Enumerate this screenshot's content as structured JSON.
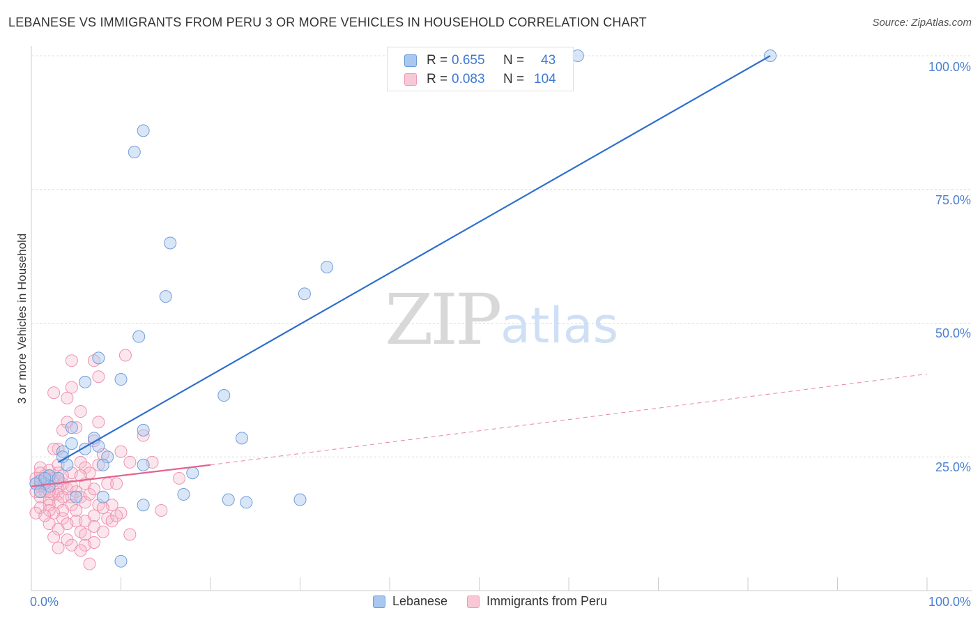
{
  "chart_data": {
    "type": "scatter",
    "title": "LEBANESE VS IMMIGRANTS FROM PERU 3 OR MORE VEHICLES IN HOUSEHOLD CORRELATION CHART",
    "source": "Source: ZipAtlas.com",
    "xlabel": "",
    "ylabel": "3 or more Vehicles in Household",
    "xlim": [
      0,
      100
    ],
    "ylim": [
      0,
      100
    ],
    "y_ticks": [
      "100.0%",
      "75.0%",
      "50.0%",
      "25.0%"
    ],
    "y_tick_values": [
      100,
      75,
      50,
      25
    ],
    "x_tick_labels": [
      "0.0%",
      "100.0%"
    ],
    "grid": true,
    "watermark": {
      "zip": "ZIP",
      "atlas": "atlas"
    },
    "colors": {
      "lebanese": "#a8c8f0",
      "lebanese_line": "#2f6fce",
      "peru": "#f5b8ca",
      "peru_line": "#e4628f"
    },
    "legend": [
      {
        "name": "Lebanese",
        "r_label": "R =",
        "r_value": "0.655",
        "n_label": "N =",
        "n_value": "43"
      },
      {
        "name": "Immigrants from Peru",
        "r_label": "R =",
        "r_value": "0.083",
        "n_label": "N =",
        "n_value": "104"
      }
    ],
    "series": [
      {
        "name": "Lebanese",
        "trend": {
          "x0": 3,
          "y0": 24,
          "x1": 82.5,
          "y1": 100
        },
        "points": [
          [
            82.5,
            100
          ],
          [
            61,
            100
          ],
          [
            12.5,
            86
          ],
          [
            11.5,
            82
          ],
          [
            15.5,
            65
          ],
          [
            33,
            60.5
          ],
          [
            15,
            55
          ],
          [
            30.5,
            55.5
          ],
          [
            12,
            47.5
          ],
          [
            7.5,
            43.5
          ],
          [
            10,
            39.5
          ],
          [
            6,
            39
          ],
          [
            21.5,
            36.5
          ],
          [
            12.5,
            30
          ],
          [
            4.5,
            30.5
          ],
          [
            23.5,
            28.5
          ],
          [
            7,
            28.5
          ],
          [
            4.5,
            27.5
          ],
          [
            6,
            26.5
          ],
          [
            7.5,
            27
          ],
          [
            3.5,
            26
          ],
          [
            8.5,
            25
          ],
          [
            3.5,
            25
          ],
          [
            4,
            23.5
          ],
          [
            8,
            23.5
          ],
          [
            12.5,
            23.5
          ],
          [
            18,
            22
          ],
          [
            2,
            21.5
          ],
          [
            3,
            21
          ],
          [
            1.5,
            20
          ],
          [
            1,
            20.5
          ],
          [
            0.5,
            20
          ],
          [
            2,
            19.5
          ],
          [
            1,
            18.5
          ],
          [
            5,
            17.5
          ],
          [
            8,
            17.5
          ],
          [
            17,
            18
          ],
          [
            22,
            17
          ],
          [
            30,
            17
          ],
          [
            12.5,
            16
          ],
          [
            24,
            16.5
          ],
          [
            10,
            5.5
          ],
          [
            1.5,
            21
          ]
        ]
      },
      {
        "name": "Immigrants from Peru",
        "trend": {
          "x0": 0,
          "y0": 19.5,
          "x1": 20,
          "y1": 23.5,
          "dash_x1": 100,
          "dash_y1": 40.5
        },
        "points": [
          [
            10.5,
            44
          ],
          [
            4.5,
            43
          ],
          [
            7,
            43
          ],
          [
            7.5,
            40
          ],
          [
            4.5,
            38
          ],
          [
            2.5,
            37
          ],
          [
            4,
            36
          ],
          [
            5.5,
            33.5
          ],
          [
            7.5,
            31.5
          ],
          [
            4,
            31.5
          ],
          [
            5,
            30.5
          ],
          [
            3.5,
            30
          ],
          [
            12.5,
            29
          ],
          [
            7,
            28
          ],
          [
            3,
            26.5
          ],
          [
            10,
            26
          ],
          [
            8,
            25.5
          ],
          [
            5.5,
            24
          ],
          [
            13.5,
            24
          ],
          [
            7.5,
            23.5
          ],
          [
            6,
            23
          ],
          [
            1,
            23
          ],
          [
            2,
            22.5
          ],
          [
            4.5,
            22
          ],
          [
            3,
            22
          ],
          [
            2,
            21.5
          ],
          [
            1.5,
            21.5
          ],
          [
            0.5,
            21
          ],
          [
            1,
            21
          ],
          [
            2.5,
            21
          ],
          [
            3,
            20.5
          ],
          [
            16.5,
            21
          ],
          [
            0.5,
            20
          ],
          [
            1,
            20
          ],
          [
            1.5,
            20
          ],
          [
            2,
            20.5
          ],
          [
            3.5,
            20
          ],
          [
            6,
            20
          ],
          [
            8.5,
            20
          ],
          [
            1,
            19.5
          ],
          [
            2,
            19.5
          ],
          [
            3,
            19
          ],
          [
            4,
            19
          ],
          [
            5,
            18.5
          ],
          [
            0.5,
            18.5
          ],
          [
            1.5,
            18.5
          ],
          [
            2.5,
            18
          ],
          [
            3,
            18
          ],
          [
            3.5,
            17.5
          ],
          [
            4.5,
            17.5
          ],
          [
            5.5,
            17.5
          ],
          [
            6.5,
            18
          ],
          [
            1,
            17.5
          ],
          [
            2,
            17
          ],
          [
            3,
            16.5
          ],
          [
            4.5,
            16
          ],
          [
            6,
            16.5
          ],
          [
            7.5,
            16
          ],
          [
            9,
            16
          ],
          [
            2,
            16
          ],
          [
            1,
            15.5
          ],
          [
            3.5,
            15
          ],
          [
            5,
            15
          ],
          [
            8,
            15.5
          ],
          [
            0.5,
            14.5
          ],
          [
            2.5,
            14.5
          ],
          [
            10,
            14.5
          ],
          [
            14.5,
            15
          ],
          [
            7,
            14
          ],
          [
            8.5,
            13.5
          ],
          [
            3.5,
            13.5
          ],
          [
            5,
            13
          ],
          [
            6,
            13
          ],
          [
            9,
            13
          ],
          [
            2,
            12.5
          ],
          [
            4,
            12.5
          ],
          [
            7,
            12
          ],
          [
            3,
            11.5
          ],
          [
            5.5,
            11
          ],
          [
            8,
            11
          ],
          [
            6,
            10.5
          ],
          [
            2.5,
            10
          ],
          [
            11,
            10.5
          ],
          [
            4,
            9.5
          ],
          [
            7,
            9
          ],
          [
            4.5,
            8.5
          ],
          [
            6,
            8.5
          ],
          [
            3,
            8
          ],
          [
            5.5,
            7.5
          ],
          [
            6.5,
            5
          ],
          [
            2,
            15
          ],
          [
            1.5,
            14
          ],
          [
            4.5,
            19.5
          ],
          [
            9.5,
            14
          ],
          [
            6.5,
            22
          ],
          [
            11,
            24
          ],
          [
            3,
            23.5
          ],
          [
            2.5,
            26.5
          ],
          [
            5.5,
            21.5
          ],
          [
            7,
            19
          ],
          [
            1,
            22
          ],
          [
            3.5,
            21.5
          ],
          [
            2,
            18.5
          ],
          [
            9.5,
            20
          ]
        ]
      }
    ]
  }
}
